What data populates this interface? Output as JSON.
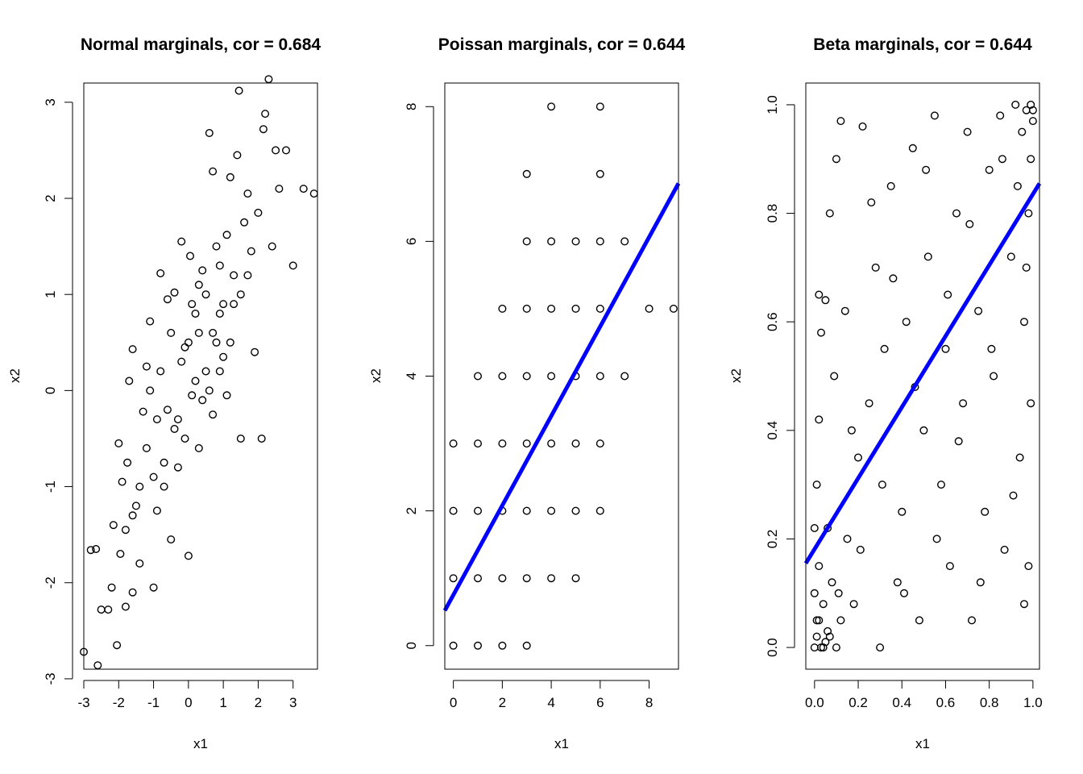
{
  "chart_data": [
    {
      "type": "scatter",
      "title": "Normal marginals, cor = 0.684",
      "xlabel": "x1",
      "ylabel": "x2",
      "xlim": [
        -3.0,
        3.7
      ],
      "ylim": [
        -2.9,
        3.2
      ],
      "xticks": [
        "-3",
        "-2",
        "-1",
        "0",
        "1",
        "2",
        "3"
      ],
      "yticks": [
        "-3",
        "-2",
        "-1",
        "0",
        "1",
        "2",
        "3"
      ],
      "points": [
        [
          -3.0,
          -2.72
        ],
        [
          -2.6,
          -2.86
        ],
        [
          -2.8,
          -1.66
        ],
        [
          -2.65,
          -1.65
        ],
        [
          -2.5,
          -2.28
        ],
        [
          -2.3,
          -2.28
        ],
        [
          -2.2,
          -2.05
        ],
        [
          -2.15,
          -1.4
        ],
        [
          -2.05,
          -2.65
        ],
        [
          -1.95,
          -1.7
        ],
        [
          -2.0,
          -0.55
        ],
        [
          -1.9,
          -0.95
        ],
        [
          -1.8,
          -2.25
        ],
        [
          -1.8,
          -1.45
        ],
        [
          -1.75,
          -0.75
        ],
        [
          -1.7,
          0.1
        ],
        [
          -1.6,
          0.43
        ],
        [
          -1.6,
          -2.1
        ],
        [
          -1.5,
          -1.2
        ],
        [
          -1.4,
          -1.8
        ],
        [
          -1.3,
          -0.22
        ],
        [
          -1.2,
          0.25
        ],
        [
          -1.1,
          0.72
        ],
        [
          -1.0,
          -2.05
        ],
        [
          -0.9,
          -1.25
        ],
        [
          -0.8,
          1.22
        ],
        [
          -0.7,
          -0.75
        ],
        [
          -0.6,
          0.95
        ],
        [
          -0.5,
          -1.55
        ],
        [
          -0.4,
          1.02
        ],
        [
          -0.3,
          -0.3
        ],
        [
          -0.2,
          1.55
        ],
        [
          -0.1,
          0.45
        ],
        [
          0.0,
          -1.72
        ],
        [
          0.05,
          1.4
        ],
        [
          0.1,
          -0.05
        ],
        [
          0.2,
          0.8
        ],
        [
          0.3,
          -0.6
        ],
        [
          0.4,
          1.25
        ],
        [
          0.5,
          0.2
        ],
        [
          0.6,
          2.68
        ],
        [
          0.7,
          2.28
        ],
        [
          0.8,
          0.5
        ],
        [
          0.9,
          1.3
        ],
        [
          1.0,
          0.35
        ],
        [
          1.1,
          1.62
        ],
        [
          1.2,
          2.22
        ],
        [
          1.3,
          0.9
        ],
        [
          1.4,
          2.45
        ],
        [
          1.45,
          3.12
        ],
        [
          1.5,
          -0.5
        ],
        [
          1.6,
          1.75
        ],
        [
          1.7,
          2.05
        ],
        [
          1.8,
          1.45
        ],
        [
          1.9,
          0.4
        ],
        [
          2.0,
          1.85
        ],
        [
          2.1,
          -0.5
        ],
        [
          2.15,
          2.72
        ],
        [
          2.2,
          2.88
        ],
        [
          2.3,
          3.24
        ],
        [
          2.4,
          1.5
        ],
        [
          2.5,
          2.5
        ],
        [
          2.6,
          2.1
        ],
        [
          2.8,
          2.5
        ],
        [
          3.0,
          1.3
        ],
        [
          3.3,
          2.1
        ],
        [
          3.6,
          2.05
        ],
        [
          1.1,
          -0.05
        ],
        [
          0.7,
          -0.25
        ],
        [
          0.3,
          0.6
        ],
        [
          -0.4,
          -0.4
        ],
        [
          -0.8,
          0.2
        ],
        [
          -1.2,
          -0.6
        ],
        [
          0.5,
          1.0
        ],
        [
          0.9,
          0.8
        ],
        [
          1.3,
          1.2
        ],
        [
          -0.2,
          0.3
        ],
        [
          0.2,
          0.1
        ],
        [
          -0.6,
          -0.2
        ],
        [
          0.0,
          0.5
        ],
        [
          -1.0,
          -0.9
        ],
        [
          -1.4,
          -1.0
        ],
        [
          0.6,
          0.0
        ],
        [
          1.0,
          0.9
        ],
        [
          1.5,
          1.0
        ],
        [
          -0.3,
          -0.8
        ],
        [
          0.4,
          -0.1
        ],
        [
          0.8,
          1.5
        ],
        [
          -0.9,
          -0.3
        ],
        [
          -0.1,
          -0.5
        ],
        [
          0.1,
          0.9
        ],
        [
          1.2,
          0.5
        ],
        [
          -1.6,
          -1.3
        ],
        [
          -0.5,
          0.6
        ],
        [
          0.7,
          0.6
        ],
        [
          1.7,
          1.2
        ],
        [
          -1.1,
          0.0
        ],
        [
          0.3,
          1.1
        ],
        [
          -0.7,
          -1.0
        ],
        [
          0.9,
          0.2
        ]
      ],
      "line": null
    },
    {
      "type": "scatter",
      "title": "Poissan marginals, cor = 0.644",
      "xlabel": "x1",
      "ylabel": "x2",
      "xlim": [
        -0.35,
        9.2
      ],
      "ylim": [
        -0.35,
        8.35
      ],
      "xticks": [
        "0",
        "2",
        "4",
        "6",
        "8"
      ],
      "yticks": [
        "0",
        "2",
        "4",
        "6",
        "8"
      ],
      "points": [
        [
          0,
          0
        ],
        [
          1,
          0
        ],
        [
          2,
          0
        ],
        [
          3,
          0
        ],
        [
          0,
          1
        ],
        [
          1,
          1
        ],
        [
          2,
          1
        ],
        [
          3,
          1
        ],
        [
          4,
          1
        ],
        [
          5,
          1
        ],
        [
          0,
          2
        ],
        [
          1,
          2
        ],
        [
          2,
          2
        ],
        [
          3,
          2
        ],
        [
          4,
          2
        ],
        [
          5,
          2
        ],
        [
          6,
          2
        ],
        [
          0,
          3
        ],
        [
          1,
          3
        ],
        [
          2,
          3
        ],
        [
          3,
          3
        ],
        [
          4,
          3
        ],
        [
          5,
          3
        ],
        [
          6,
          3
        ],
        [
          1,
          4
        ],
        [
          2,
          4
        ],
        [
          3,
          4
        ],
        [
          4,
          4
        ],
        [
          5,
          4
        ],
        [
          6,
          4
        ],
        [
          7,
          4
        ],
        [
          2,
          5
        ],
        [
          3,
          5
        ],
        [
          4,
          5
        ],
        [
          5,
          5
        ],
        [
          6,
          5
        ],
        [
          8,
          5
        ],
        [
          9,
          5
        ],
        [
          3,
          6
        ],
        [
          4,
          6
        ],
        [
          5,
          6
        ],
        [
          6,
          6
        ],
        [
          7,
          6
        ],
        [
          3,
          7
        ],
        [
          6,
          7
        ],
        [
          4,
          8
        ],
        [
          6,
          8
        ]
      ],
      "line": {
        "color": "#0000ff",
        "from": [
          -0.35,
          0.52
        ],
        "to": [
          9.2,
          6.86
        ]
      }
    },
    {
      "type": "scatter",
      "title": "Beta marginals, cor = 0.644",
      "xlabel": "x1",
      "ylabel": "x2",
      "xlim": [
        -0.04,
        1.03
      ],
      "ylim": [
        -0.04,
        1.04
      ],
      "xticks": [
        "0.0",
        "0.2",
        "0.4",
        "0.6",
        "0.8",
        "1.0"
      ],
      "yticks": [
        "0.0",
        "0.2",
        "0.4",
        "0.6",
        "0.8",
        "1.0"
      ],
      "points": [
        [
          0.0,
          0.0
        ],
        [
          0.01,
          0.02
        ],
        [
          0.02,
          0.05
        ],
        [
          0.0,
          0.1
        ],
        [
          0.03,
          0.0
        ],
        [
          0.05,
          0.01
        ],
        [
          0.02,
          0.15
        ],
        [
          0.04,
          0.08
        ],
        [
          0.06,
          0.03
        ],
        [
          0.01,
          0.3
        ],
        [
          0.08,
          0.12
        ],
        [
          0.1,
          0.0
        ],
        [
          0.12,
          0.05
        ],
        [
          0.03,
          0.58
        ],
        [
          0.05,
          0.64
        ],
        [
          0.07,
          0.8
        ],
        [
          0.1,
          0.9
        ],
        [
          0.12,
          0.97
        ],
        [
          0.15,
          0.2
        ],
        [
          0.18,
          0.08
        ],
        [
          0.2,
          0.35
        ],
        [
          0.22,
          0.96
        ],
        [
          0.25,
          0.45
        ],
        [
          0.28,
          0.7
        ],
        [
          0.3,
          0.0
        ],
        [
          0.32,
          0.55
        ],
        [
          0.35,
          0.85
        ],
        [
          0.38,
          0.12
        ],
        [
          0.4,
          0.25
        ],
        [
          0.42,
          0.6
        ],
        [
          0.45,
          0.92
        ],
        [
          0.48,
          0.05
        ],
        [
          0.5,
          0.4
        ],
        [
          0.52,
          0.72
        ],
        [
          0.55,
          0.98
        ],
        [
          0.58,
          0.3
        ],
        [
          0.6,
          0.55
        ],
        [
          0.62,
          0.15
        ],
        [
          0.65,
          0.8
        ],
        [
          0.68,
          0.45
        ],
        [
          0.7,
          0.95
        ],
        [
          0.72,
          0.05
        ],
        [
          0.75,
          0.62
        ],
        [
          0.78,
          0.25
        ],
        [
          0.8,
          0.88
        ],
        [
          0.82,
          0.5
        ],
        [
          0.85,
          0.98
        ],
        [
          0.87,
          0.18
        ],
        [
          0.9,
          0.72
        ],
        [
          0.92,
          1.0
        ],
        [
          0.94,
          0.35
        ],
        [
          0.95,
          0.95
        ],
        [
          0.96,
          0.6
        ],
        [
          0.97,
          0.99
        ],
        [
          0.98,
          0.15
        ],
        [
          0.99,
          1.0
        ],
        [
          1.0,
          0.97
        ],
        [
          0.99,
          0.45
        ],
        [
          0.98,
          0.8
        ],
        [
          1.0,
          0.99
        ],
        [
          0.02,
          0.42
        ],
        [
          0.06,
          0.22
        ],
        [
          0.09,
          0.5
        ],
        [
          0.14,
          0.62
        ],
        [
          0.17,
          0.4
        ],
        [
          0.21,
          0.18
        ],
        [
          0.26,
          0.82
        ],
        [
          0.31,
          0.3
        ],
        [
          0.36,
          0.68
        ],
        [
          0.41,
          0.1
        ],
        [
          0.46,
          0.48
        ],
        [
          0.51,
          0.88
        ],
        [
          0.56,
          0.2
        ],
        [
          0.61,
          0.65
        ],
        [
          0.66,
          0.38
        ],
        [
          0.71,
          0.78
        ],
        [
          0.76,
          0.12
        ],
        [
          0.81,
          0.55
        ],
        [
          0.86,
          0.9
        ],
        [
          0.91,
          0.28
        ],
        [
          0.93,
          0.85
        ],
        [
          0.96,
          0.08
        ],
        [
          0.97,
          0.7
        ],
        [
          0.99,
          0.9
        ],
        [
          0.01,
          0.05
        ],
        [
          0.04,
          0.0
        ],
        [
          0.07,
          0.02
        ],
        [
          0.11,
          0.1
        ],
        [
          0.0,
          0.22
        ],
        [
          0.02,
          0.65
        ]
      ],
      "line": {
        "color": "#0000ff",
        "from": [
          -0.04,
          0.155
        ],
        "to": [
          1.03,
          0.855
        ]
      }
    }
  ]
}
